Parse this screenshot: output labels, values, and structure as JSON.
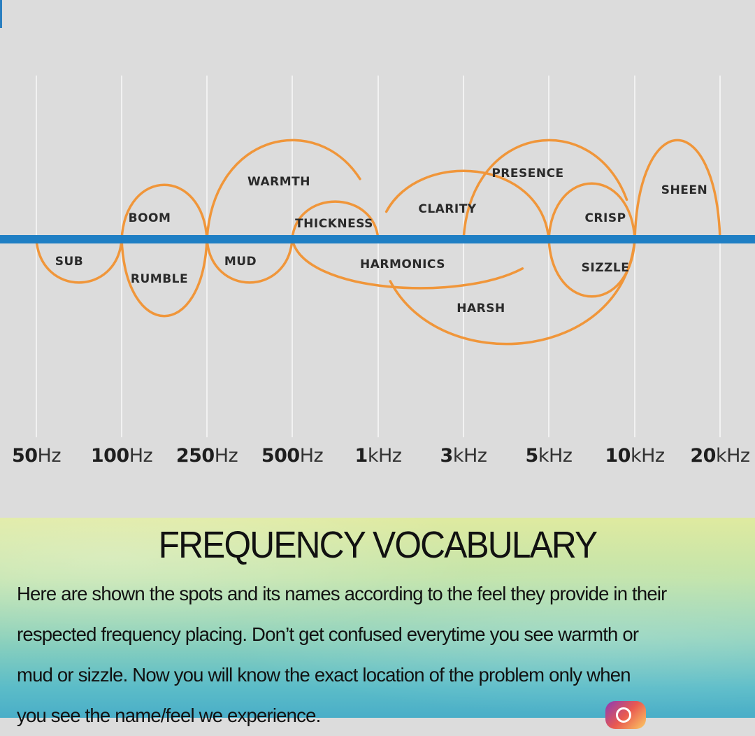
{
  "chart_data": {
    "type": "diagram",
    "title": "",
    "ticks": [
      {
        "num": "50",
        "unit": "Hz"
      },
      {
        "num": "100",
        "unit": "Hz"
      },
      {
        "num": "250",
        "unit": "Hz"
      },
      {
        "num": "500",
        "unit": "Hz"
      },
      {
        "num": "1",
        "unit": "kHz"
      },
      {
        "num": "3",
        "unit": "kHz"
      },
      {
        "num": "5",
        "unit": "kHz"
      },
      {
        "num": "10",
        "unit": "kHz"
      },
      {
        "num": "20",
        "unit": "kHz"
      }
    ],
    "bands": [
      {
        "label": "SUB",
        "from": "50Hz",
        "to": "100Hz",
        "side": "below"
      },
      {
        "label": "BOOM",
        "from": "100Hz",
        "to": "250Hz",
        "side": "above"
      },
      {
        "label": "RUMBLE",
        "from": "100Hz",
        "to": "250Hz",
        "side": "below"
      },
      {
        "label": "WARMTH",
        "from": "250Hz",
        "to": "1kHz",
        "side": "above"
      },
      {
        "label": "MUD",
        "from": "250Hz",
        "to": "500Hz",
        "side": "below"
      },
      {
        "label": "THICKNESS",
        "from": "500Hz",
        "to": "1kHz",
        "side": "above"
      },
      {
        "label": "HARMONICS",
        "from": "500Hz",
        "to": "5kHz",
        "side": "below"
      },
      {
        "label": "CLARITY",
        "from": "1kHz",
        "to": "5kHz",
        "side": "above"
      },
      {
        "label": "HARSH",
        "from": "1kHz",
        "to": "10kHz",
        "side": "below"
      },
      {
        "label": "PRESENCE",
        "from": "3kHz",
        "to": "10kHz",
        "side": "above"
      },
      {
        "label": "CRISP",
        "from": "5kHz",
        "to": "10kHz",
        "side": "above"
      },
      {
        "label": "SIZZLE",
        "from": "5kHz",
        "to": "10kHz",
        "side": "below"
      },
      {
        "label": "SHEEN",
        "from": "10kHz",
        "to": "20kHz",
        "side": "above"
      }
    ],
    "colors": {
      "baseline": "#1f7fc4",
      "curve": "#f0963a",
      "grid": "#f2f2f2",
      "label": "#2a2a2a"
    }
  },
  "info": {
    "title": "FREQUENCY VOCABULARY",
    "lines": [
      "Here are shown the spots and its names according to the feel they provide in their",
      "respected frequency placing. Don’t get confused everytime you see warmth or",
      "mud or sizzle. Now you will know the exact location of the problem only when",
      "you see the name/feel we experience."
    ],
    "icon": "instagram-icon"
  }
}
